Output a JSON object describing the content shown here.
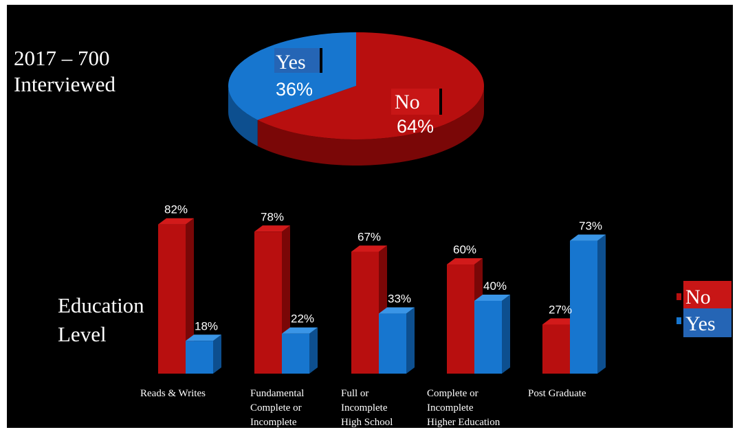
{
  "title": {
    "line1": "2017 – 700",
    "line2": "Interviewed"
  },
  "side_label": {
    "line1": "Education",
    "line2": "Level"
  },
  "colors": {
    "no": "#b80f0f",
    "no_dark": "#7a0707",
    "no_top": "#d21a1a",
    "yes": "#1776cf",
    "yes_dark": "#0d4f8f",
    "yes_top": "#3a95e6",
    "background": "#000000",
    "text": "#ffffff",
    "label_bg_no": "#c81616",
    "label_bg_yes": "#2565b5"
  },
  "chart_data": [
    {
      "type": "pie",
      "slices": [
        {
          "label": "Yes",
          "value": 36,
          "value_label": "36%"
        },
        {
          "label": "No",
          "value": 64,
          "value_label": "64%"
        }
      ]
    },
    {
      "type": "bar",
      "categories": [
        [
          "Reads &  Writes"
        ],
        [
          "Fundamental",
          "Complete or",
          "Incomplete"
        ],
        [
          "Full or",
          "Incomplete",
          "High School"
        ],
        [
          "Complete or",
          "Incomplete",
          "Higher Education"
        ],
        [
          "Post Graduate"
        ]
      ],
      "series": [
        {
          "name": "No",
          "values": [
            82,
            78,
            67,
            60,
            27
          ],
          "value_labels": [
            "82%",
            "78%",
            "67%",
            "60%",
            "27%"
          ]
        },
        {
          "name": "Yes",
          "values": [
            18,
            22,
            33,
            40,
            73
          ],
          "value_labels": [
            "18%",
            "22%",
            "33%",
            "40%",
            "73%"
          ]
        }
      ],
      "ylim": [
        0,
        100
      ],
      "legend_position": "right"
    }
  ]
}
